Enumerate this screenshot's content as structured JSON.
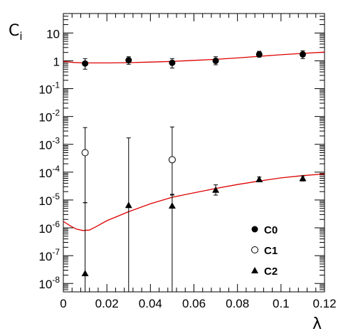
{
  "chart_data": {
    "type": "scatter",
    "title": "",
    "xlabel": "λ",
    "ylabel": "C",
    "ylabel_sub": "i",
    "xlim": [
      0,
      0.12
    ],
    "ylim": [
      5e-09,
      50
    ],
    "yscale": "log",
    "grid": false,
    "legend_position": "bottom-right",
    "x_ticks": [
      {
        "value": 0,
        "label": "0"
      },
      {
        "value": 0.02,
        "label": "0.02"
      },
      {
        "value": 0.04,
        "label": "0.04"
      },
      {
        "value": 0.06,
        "label": "0.06"
      },
      {
        "value": 0.08,
        "label": "0.08"
      },
      {
        "value": 0.1,
        "label": "0.1"
      },
      {
        "value": 0.12,
        "label": "0.12"
      }
    ],
    "y_ticks": [
      {
        "value": 1e-08,
        "base": "10",
        "exp": "-8"
      },
      {
        "value": 1e-07,
        "base": "10",
        "exp": "-7"
      },
      {
        "value": 1e-06,
        "base": "10",
        "exp": "-6"
      },
      {
        "value": 1e-05,
        "base": "10",
        "exp": "-5"
      },
      {
        "value": 0.0001,
        "base": "10",
        "exp": "-4"
      },
      {
        "value": 0.001,
        "base": "10",
        "exp": "-3"
      },
      {
        "value": 0.01,
        "base": "10",
        "exp": "-2"
      },
      {
        "value": 0.1,
        "base": "10",
        "exp": "-1"
      },
      {
        "value": 1,
        "base": "1",
        "exp": ""
      },
      {
        "value": 10,
        "base": "10",
        "exp": ""
      }
    ],
    "series": [
      {
        "name": "C0",
        "marker": "filled-circle",
        "color": "#000000",
        "points": [
          {
            "x": 0.01,
            "y": 0.8,
            "lo": 0.5,
            "hi": 1.2
          },
          {
            "x": 0.03,
            "y": 1.05,
            "lo": 0.75,
            "hi": 1.4
          },
          {
            "x": 0.05,
            "y": 0.85,
            "lo": 0.55,
            "hi": 1.2
          },
          {
            "x": 0.07,
            "y": 1.0,
            "lo": 0.72,
            "hi": 1.4
          },
          {
            "x": 0.09,
            "y": 1.7,
            "lo": 1.35,
            "hi": 2.2
          },
          {
            "x": 0.11,
            "y": 1.7,
            "lo": 1.2,
            "hi": 2.3
          }
        ]
      },
      {
        "name": "C1",
        "marker": "open-circle",
        "color": "#000000",
        "points": [
          {
            "x": 0.01,
            "y": 0.0005,
            "lo": 8e-06,
            "hi": 0.004
          },
          {
            "x": 0.05,
            "y": 0.00028,
            "lo": 1.5e-05,
            "hi": 0.0042
          }
        ]
      },
      {
        "name": "C2",
        "marker": "filled-triangle",
        "color": "#000000",
        "points": [
          {
            "x": 0.01,
            "y": 2.3e-08,
            "lo": 5e-09,
            "hi": 8e-06
          },
          {
            "x": 0.03,
            "y": 6.5e-06,
            "lo": 5e-09,
            "hi": 0.0017
          },
          {
            "x": 0.05,
            "y": 6.2e-06,
            "lo": 5e-09,
            "hi": 1.6e-05
          },
          {
            "x": 0.07,
            "y": 2.3e-05,
            "lo": 1.5e-05,
            "hi": 3.5e-05
          },
          {
            "x": 0.09,
            "y": 5.5e-05,
            "lo": 4.6e-05,
            "hi": 6.7e-05
          },
          {
            "x": 0.11,
            "y": 6e-05,
            "lo": 4.8e-05,
            "hi": 7.3e-05
          }
        ]
      }
    ],
    "fit_curves": [
      {
        "color": "#dd0000",
        "points": [
          [
            0.0,
            0.95
          ],
          [
            0.005,
            0.87
          ],
          [
            0.01,
            0.84
          ],
          [
            0.02,
            0.84
          ],
          [
            0.03,
            0.86
          ],
          [
            0.04,
            0.9
          ],
          [
            0.05,
            0.95
          ],
          [
            0.06,
            1.04
          ],
          [
            0.07,
            1.13
          ],
          [
            0.08,
            1.27
          ],
          [
            0.09,
            1.45
          ],
          [
            0.1,
            1.65
          ],
          [
            0.11,
            1.85
          ],
          [
            0.12,
            2.05
          ]
        ]
      },
      {
        "color": "#dd0000",
        "points": [
          [
            0.0,
            1.7e-06
          ],
          [
            0.003,
            1.2e-06
          ],
          [
            0.006,
            9e-07
          ],
          [
            0.009,
            8e-07
          ],
          [
            0.012,
            8.3e-07
          ],
          [
            0.015,
            1.1e-06
          ],
          [
            0.02,
            1.8e-06
          ],
          [
            0.03,
            3.8e-06
          ],
          [
            0.04,
            7.3e-06
          ],
          [
            0.05,
            1.25e-05
          ],
          [
            0.06,
            1.8e-05
          ],
          [
            0.07,
            2.6e-05
          ],
          [
            0.08,
            3.6e-05
          ],
          [
            0.09,
            4.8e-05
          ],
          [
            0.1,
            6.2e-05
          ],
          [
            0.11,
            7.5e-05
          ],
          [
            0.12,
            8.6e-05
          ]
        ]
      }
    ]
  }
}
